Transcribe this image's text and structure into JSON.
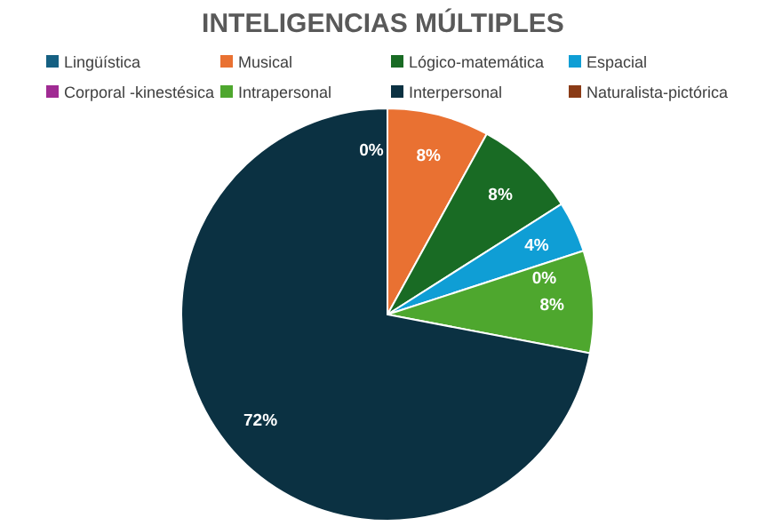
{
  "chart_data": {
    "type": "pie",
    "title": "INTELIGENCIAS MÚLTIPLES",
    "categories": [
      "Lingüística",
      "Musical",
      "Lógico-matemática",
      "Espacial",
      "Corporal -kinestésica",
      "Intrapersonal",
      "Interpersonal",
      "Naturalista-pictórica"
    ],
    "values": [
      0,
      8,
      8,
      4,
      0,
      8,
      72,
      0
    ],
    "colors": [
      "#156082",
      "#e97132",
      "#196b24",
      "#0f9ed5",
      "#a02b93",
      "#4ea72e",
      "#0b3142",
      "#8a3b16"
    ],
    "value_labels": [
      "0%",
      "8%",
      "8%",
      "4%",
      "0%",
      "8%",
      "72%",
      null
    ],
    "legend": "top"
  }
}
